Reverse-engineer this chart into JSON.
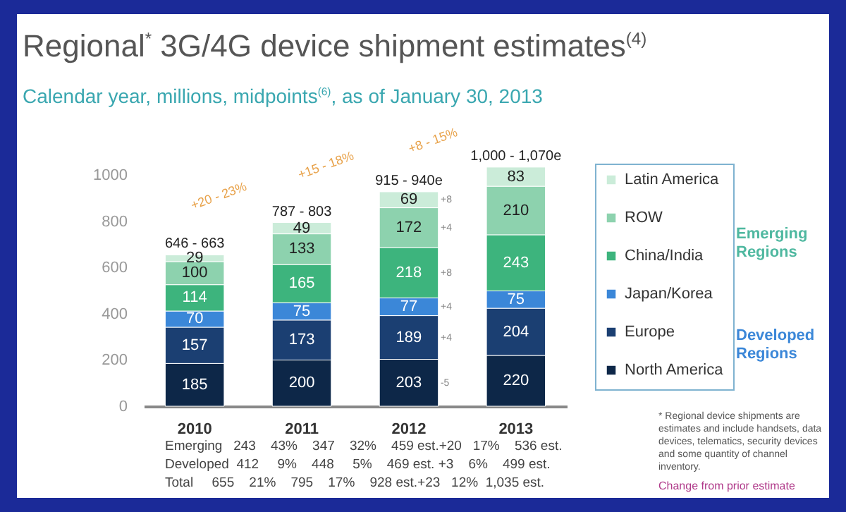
{
  "chart_data": {
    "type": "bar",
    "stacked": true,
    "title": "Regional$^{*}$ 3G/4G device shipment estimates$^{(4)}$",
    "subtitle": "Calendar year, millions, midpoints$^{(6)}$, as of January 30, 2013",
    "categories": [
      "2010",
      "2011",
      "2012",
      "2013"
    ],
    "series": [
      {
        "name": "North America",
        "color": "#0d2748",
        "values": [
          185,
          200,
          203,
          220
        ]
      },
      {
        "name": "Europe",
        "color": "#1b3f72",
        "values": [
          157,
          173,
          189,
          204
        ]
      },
      {
        "name": "Japan/Korea",
        "color": "#3b87d8",
        "values": [
          70,
          75,
          77,
          75
        ]
      },
      {
        "name": "China/India",
        "color": "#3db47d",
        "values": [
          114,
          165,
          218,
          243
        ]
      },
      {
        "name": "ROW",
        "color": "#8dd2ae",
        "values": [
          100,
          133,
          172,
          210
        ]
      },
      {
        "name": "Latin America",
        "color": "#cbecd9",
        "values": [
          29,
          49,
          69,
          83
        ]
      }
    ],
    "ylim": [
      0,
      1050
    ],
    "yticks": [
      0,
      200,
      400,
      600,
      800,
      1000
    ],
    "grid": false,
    "legend": "right",
    "data_labels": true,
    "annotations": [
      {
        "text": "646 - 663",
        "x": "2010",
        "y": 655
      },
      {
        "text": "787 - 803",
        "x": "2011",
        "y": 795
      },
      {
        "text": "915 - 940e",
        "x": "2012",
        "y": 928
      },
      {
        "text": "1,000 - 1,070e",
        "x": "2013",
        "y": 1035
      },
      "+8",
      "+4",
      "+8",
      "+4",
      "+4",
      "-5",
      "+20 - 23%",
      "+15 - 18%",
      "+8 - 15%",
      "Emerging Regions",
      "Developed Regions",
      "Emerging   243    43%    347    32%    459 est.+20   17%    536 est.",
      "Developed  412     9%    448     5%    469 est. +3    6%    499 est.",
      "Total     655    21%    795    17%    928 est.+23   12%  1,035 est.",
      "* Regional device shipments are estimates and include handsets, data devices, telematics, security devices and some quantity of channel inventory.",
      "Change from prior estimate"
    ]
  }
}
